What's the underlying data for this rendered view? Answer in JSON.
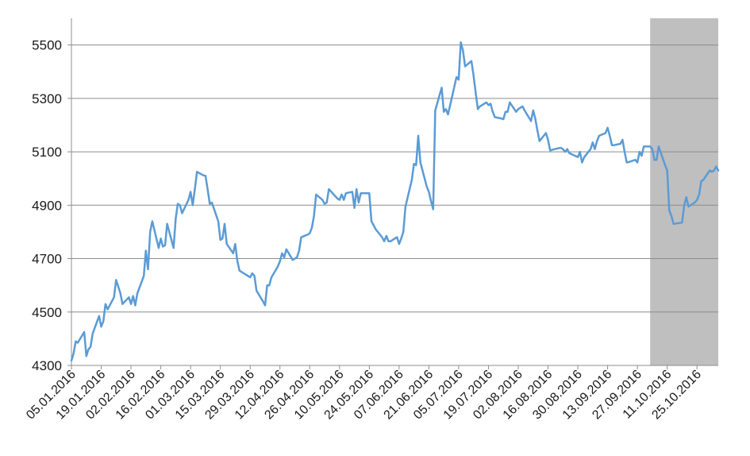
{
  "chart_data": {
    "type": "line",
    "title": "",
    "xlabel": "",
    "ylabel": "",
    "ylim": [
      4300,
      5600
    ],
    "yticks": [
      4300,
      4500,
      4700,
      4900,
      5100,
      5300,
      5500
    ],
    "xlim": [
      "2016-01-05",
      "2016-11-04"
    ],
    "xtick_labels": [
      "05.01.2016",
      "19.01.2016",
      "02.02.2016",
      "16.02.2016",
      "01.03.2016",
      "15.03.2016",
      "29.03.2016",
      "12.04.2016",
      "26.04.2016",
      "10.05.2016",
      "24.05.2016",
      "07.06.2016",
      "21.06.2016",
      "05.07.2016",
      "19.07.2016",
      "02.08.2016",
      "16.08.2016",
      "30.08.2016",
      "13.09.2016",
      "27.09.2016",
      "11.10.2016",
      "25.10.2016"
    ],
    "grid": "horizontal",
    "legend": "none",
    "highlight_region": {
      "from": "2016-10-03",
      "to": "2016-11-04",
      "color": "#bfbfbf"
    },
    "series": [
      {
        "color": "#5b9bd5",
        "points": [
          [
            "2016-01-05",
            4318
          ],
          [
            "2016-01-06",
            4345
          ],
          [
            "2016-01-07",
            4390
          ],
          [
            "2016-01-08",
            4385
          ],
          [
            "2016-01-11",
            4425
          ],
          [
            "2016-01-12",
            4335
          ],
          [
            "2016-01-13",
            4360
          ],
          [
            "2016-01-14",
            4370
          ],
          [
            "2016-01-15",
            4420
          ],
          [
            "2016-01-18",
            4485
          ],
          [
            "2016-01-19",
            4445
          ],
          [
            "2016-01-20",
            4465
          ],
          [
            "2016-01-21",
            4530
          ],
          [
            "2016-01-22",
            4510
          ],
          [
            "2016-01-25",
            4555
          ],
          [
            "2016-01-26",
            4620
          ],
          [
            "2016-01-27",
            4595
          ],
          [
            "2016-01-28",
            4570
          ],
          [
            "2016-01-29",
            4530
          ],
          [
            "2016-02-01",
            4555
          ],
          [
            "2016-02-02",
            4530
          ],
          [
            "2016-02-03",
            4560
          ],
          [
            "2016-02-04",
            4525
          ],
          [
            "2016-02-05",
            4570
          ],
          [
            "2016-02-08",
            4635
          ],
          [
            "2016-02-09",
            4730
          ],
          [
            "2016-02-10",
            4660
          ],
          [
            "2016-02-11",
            4800
          ],
          [
            "2016-02-12",
            4840
          ],
          [
            "2016-02-15",
            4740
          ],
          [
            "2016-02-16",
            4775
          ],
          [
            "2016-02-17",
            4745
          ],
          [
            "2016-02-18",
            4750
          ],
          [
            "2016-02-19",
            4830
          ],
          [
            "2016-02-22",
            4740
          ],
          [
            "2016-02-23",
            4850
          ],
          [
            "2016-02-24",
            4905
          ],
          [
            "2016-02-25",
            4900
          ],
          [
            "2016-02-26",
            4870
          ],
          [
            "2016-02-29",
            4920
          ],
          [
            "2016-03-01",
            4950
          ],
          [
            "2016-03-02",
            4900
          ],
          [
            "2016-03-03",
            4960
          ],
          [
            "2016-03-04",
            5025
          ],
          [
            "2016-03-07",
            5012
          ],
          [
            "2016-03-08",
            5010
          ],
          [
            "2016-03-09",
            4960
          ],
          [
            "2016-03-10",
            4905
          ],
          [
            "2016-03-11",
            4910
          ],
          [
            "2016-03-14",
            4840
          ],
          [
            "2016-03-15",
            4770
          ],
          [
            "2016-03-16",
            4775
          ],
          [
            "2016-03-17",
            4830
          ],
          [
            "2016-03-18",
            4755
          ],
          [
            "2016-03-21",
            4720
          ],
          [
            "2016-03-22",
            4755
          ],
          [
            "2016-03-23",
            4690
          ],
          [
            "2016-03-24",
            4655
          ],
          [
            "2016-03-29",
            4630
          ],
          [
            "2016-03-30",
            4645
          ],
          [
            "2016-03-31",
            4635
          ],
          [
            "2016-04-01",
            4580
          ],
          [
            "2016-04-04",
            4540
          ],
          [
            "2016-04-05",
            4525
          ],
          [
            "2016-04-06",
            4600
          ],
          [
            "2016-04-07",
            4600
          ],
          [
            "2016-04-08",
            4630
          ],
          [
            "2016-04-11",
            4670
          ],
          [
            "2016-04-12",
            4690
          ],
          [
            "2016-04-13",
            4720
          ],
          [
            "2016-04-14",
            4705
          ],
          [
            "2016-04-15",
            4735
          ],
          [
            "2016-04-18",
            4695
          ],
          [
            "2016-04-19",
            4700
          ],
          [
            "2016-04-20",
            4705
          ],
          [
            "2016-04-21",
            4730
          ],
          [
            "2016-04-22",
            4780
          ],
          [
            "2016-04-25",
            4790
          ],
          [
            "2016-04-26",
            4795
          ],
          [
            "2016-04-27",
            4815
          ],
          [
            "2016-04-28",
            4860
          ],
          [
            "2016-04-29",
            4940
          ],
          [
            "2016-05-02",
            4920
          ],
          [
            "2016-05-03",
            4905
          ],
          [
            "2016-05-04",
            4910
          ],
          [
            "2016-05-05",
            4960
          ],
          [
            "2016-05-09",
            4925
          ],
          [
            "2016-05-10",
            4920
          ],
          [
            "2016-05-11",
            4940
          ],
          [
            "2016-05-12",
            4920
          ],
          [
            "2016-05-13",
            4945
          ],
          [
            "2016-05-16",
            4950
          ],
          [
            "2016-05-17",
            4890
          ],
          [
            "2016-05-18",
            4960
          ],
          [
            "2016-05-19",
            4910
          ],
          [
            "2016-05-20",
            4945
          ],
          [
            "2016-05-23",
            4945
          ],
          [
            "2016-05-24",
            4945
          ],
          [
            "2016-05-25",
            4840
          ],
          [
            "2016-05-26",
            4825
          ],
          [
            "2016-05-27",
            4810
          ],
          [
            "2016-05-30",
            4780
          ],
          [
            "2016-05-31",
            4765
          ],
          [
            "2016-06-01",
            4785
          ],
          [
            "2016-06-02",
            4765
          ],
          [
            "2016-06-03",
            4765
          ],
          [
            "2016-06-06",
            4780
          ],
          [
            "2016-06-07",
            4755
          ],
          [
            "2016-06-08",
            4775
          ],
          [
            "2016-06-09",
            4800
          ],
          [
            "2016-06-10",
            4895
          ],
          [
            "2016-06-13",
            4995
          ],
          [
            "2016-06-14",
            5055
          ],
          [
            "2016-06-15",
            5050
          ],
          [
            "2016-06-16",
            5160
          ],
          [
            "2016-06-17",
            5060
          ],
          [
            "2016-06-20",
            4970
          ],
          [
            "2016-06-21",
            4950
          ],
          [
            "2016-06-22",
            4915
          ],
          [
            "2016-06-23",
            4885
          ],
          [
            "2016-06-24",
            5255
          ],
          [
            "2016-06-27",
            5340
          ],
          [
            "2016-06-28",
            5250
          ],
          [
            "2016-06-29",
            5260
          ],
          [
            "2016-06-30",
            5240
          ],
          [
            "2016-07-01",
            5275
          ],
          [
            "2016-07-04",
            5380
          ],
          [
            "2016-07-05",
            5370
          ],
          [
            "2016-07-06",
            5510
          ],
          [
            "2016-07-07",
            5480
          ],
          [
            "2016-07-08",
            5420
          ],
          [
            "2016-07-11",
            5440
          ],
          [
            "2016-07-12",
            5385
          ],
          [
            "2016-07-13",
            5320
          ],
          [
            "2016-07-14",
            5260
          ],
          [
            "2016-07-15",
            5270
          ],
          [
            "2016-07-18",
            5285
          ],
          [
            "2016-07-19",
            5275
          ],
          [
            "2016-07-20",
            5280
          ],
          [
            "2016-07-21",
            5250
          ],
          [
            "2016-07-22",
            5230
          ],
          [
            "2016-07-25",
            5225
          ],
          [
            "2016-07-26",
            5222
          ],
          [
            "2016-07-27",
            5250
          ],
          [
            "2016-07-28",
            5250
          ],
          [
            "2016-07-29",
            5285
          ],
          [
            "2016-08-01",
            5250
          ],
          [
            "2016-08-02",
            5260
          ],
          [
            "2016-08-03",
            5265
          ],
          [
            "2016-08-04",
            5270
          ],
          [
            "2016-08-05",
            5255
          ],
          [
            "2016-08-08",
            5215
          ],
          [
            "2016-08-09",
            5255
          ],
          [
            "2016-08-10",
            5225
          ],
          [
            "2016-08-11",
            5180
          ],
          [
            "2016-08-12",
            5140
          ],
          [
            "2016-08-15",
            5170
          ],
          [
            "2016-08-16",
            5145
          ],
          [
            "2016-08-17",
            5105
          ],
          [
            "2016-08-19",
            5110
          ],
          [
            "2016-08-22",
            5115
          ],
          [
            "2016-08-23",
            5110
          ],
          [
            "2016-08-24",
            5100
          ],
          [
            "2016-08-25",
            5110
          ],
          [
            "2016-08-26",
            5095
          ],
          [
            "2016-08-30",
            5080
          ],
          [
            "2016-08-31",
            5100
          ],
          [
            "2016-09-01",
            5060
          ],
          [
            "2016-09-02",
            5080
          ],
          [
            "2016-09-05",
            5110
          ],
          [
            "2016-09-06",
            5135
          ],
          [
            "2016-09-07",
            5110
          ],
          [
            "2016-09-08",
            5140
          ],
          [
            "2016-09-09",
            5160
          ],
          [
            "2016-09-12",
            5170
          ],
          [
            "2016-09-13",
            5190
          ],
          [
            "2016-09-14",
            5160
          ],
          [
            "2016-09-15",
            5125
          ],
          [
            "2016-09-16",
            5125
          ],
          [
            "2016-09-19",
            5130
          ],
          [
            "2016-09-20",
            5145
          ],
          [
            "2016-09-21",
            5100
          ],
          [
            "2016-09-22",
            5060
          ],
          [
            "2016-09-23",
            5062
          ],
          [
            "2016-09-26",
            5070
          ],
          [
            "2016-09-27",
            5060
          ],
          [
            "2016-09-28",
            5100
          ],
          [
            "2016-09-29",
            5085
          ],
          [
            "2016-09-30",
            5120
          ],
          [
            "2016-10-03",
            5120
          ],
          [
            "2016-10-04",
            5110
          ],
          [
            "2016-10-05",
            5070
          ],
          [
            "2016-10-06",
            5070
          ],
          [
            "2016-10-07",
            5120
          ],
          [
            "2016-10-10",
            5050
          ],
          [
            "2016-10-11",
            5030
          ],
          [
            "2016-10-12",
            4880
          ],
          [
            "2016-10-13",
            4860
          ],
          [
            "2016-10-14",
            4830
          ],
          [
            "2016-10-18",
            4835
          ],
          [
            "2016-10-19",
            4900
          ],
          [
            "2016-10-20",
            4930
          ],
          [
            "2016-10-21",
            4895
          ],
          [
            "2016-10-24",
            4910
          ],
          [
            "2016-10-25",
            4920
          ],
          [
            "2016-10-26",
            4940
          ],
          [
            "2016-10-27",
            4990
          ],
          [
            "2016-10-28",
            4995
          ],
          [
            "2016-10-31",
            5030
          ],
          [
            "2016-11-01",
            5025
          ],
          [
            "2016-11-02",
            5030
          ],
          [
            "2016-11-03",
            5045
          ],
          [
            "2016-11-04",
            5030
          ]
        ]
      }
    ]
  }
}
